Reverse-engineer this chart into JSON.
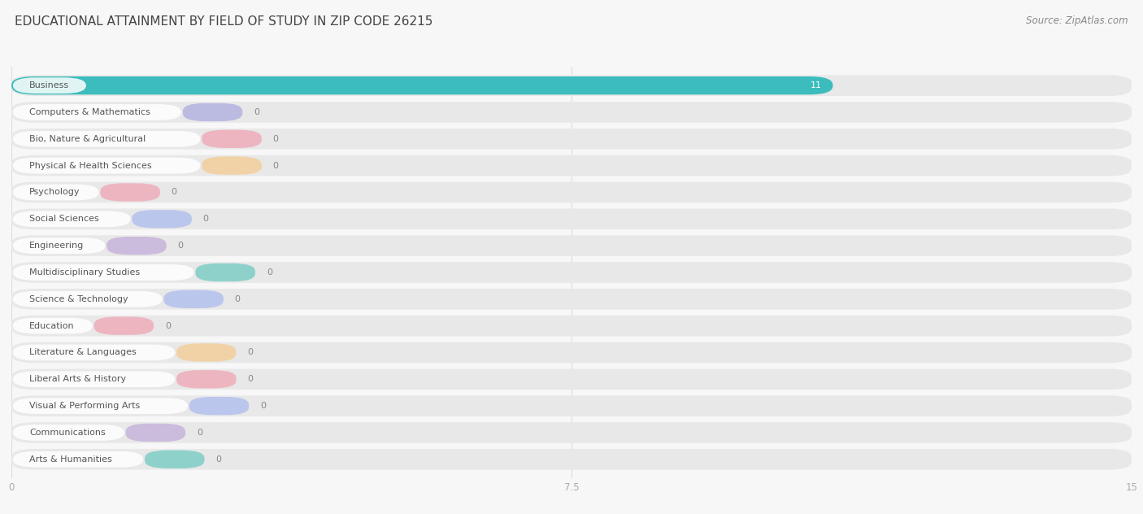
{
  "title": "EDUCATIONAL ATTAINMENT BY FIELD OF STUDY IN ZIP CODE 26215",
  "source": "Source: ZipAtlas.com",
  "categories": [
    "Business",
    "Computers & Mathematics",
    "Bio, Nature & Agricultural",
    "Physical & Health Sciences",
    "Psychology",
    "Social Sciences",
    "Engineering",
    "Multidisciplinary Studies",
    "Science & Technology",
    "Education",
    "Literature & Languages",
    "Liberal Arts & History",
    "Visual & Performing Arts",
    "Communications",
    "Arts & Humanities"
  ],
  "values": [
    11,
    0,
    0,
    0,
    0,
    0,
    0,
    0,
    0,
    0,
    0,
    0,
    0,
    0,
    0
  ],
  "bar_colors": [
    "#3CBCBC",
    "#A8A8E0",
    "#F0A0B0",
    "#F5C98A",
    "#F0A0B0",
    "#A8B8F0",
    "#C0A8D8",
    "#68C8C0",
    "#A8B8F0",
    "#F0A0B0",
    "#F5C98A",
    "#F0A0B0",
    "#A8B8F0",
    "#C0A8D8",
    "#68C8C0"
  ],
  "xlim": [
    0,
    15
  ],
  "xticks": [
    0,
    7.5,
    15
  ],
  "background_color": "#f7f7f7",
  "bar_bg_color": "#e8e8e8",
  "row_bg_color": "#ffffff",
  "title_fontsize": 11,
  "source_fontsize": 8.5,
  "label_fontsize": 8,
  "value_fontsize": 8,
  "bar_height": 0.68,
  "title_color": "#444444",
  "label_color": "#555555",
  "value_color_white": "#ffffff",
  "value_color_dark": "#888888",
  "tick_color": "#aaaaaa",
  "grid_color": "#dddddd",
  "label_pill_color": "#ffffff",
  "label_pill_alpha": 0.85
}
